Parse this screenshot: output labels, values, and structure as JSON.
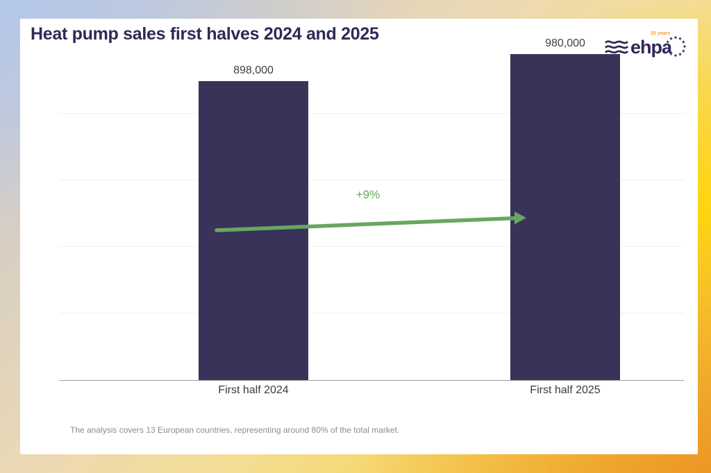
{
  "header": {
    "title": "Heat pump sales first halves 2024 and 2025"
  },
  "logo": {
    "text": "ehpa",
    "years_text": "25 years"
  },
  "chart_data": {
    "type": "bar",
    "title": "Heat pump sales first halves 2024 and 2025",
    "categories": [
      "First half 2024",
      "First half 2025"
    ],
    "values": [
      898000,
      980000
    ],
    "value_labels": [
      "898,000",
      "980,000"
    ],
    "xlabel": "",
    "ylabel": "",
    "ylim": [
      0,
      1000000
    ],
    "gridline_values": [
      200000,
      400000,
      600000,
      800000
    ],
    "grid": "horizontal gridlines, no y-axis tick labels",
    "legend": "none",
    "bar_color": "#39335a",
    "annotation": {
      "label": "+9%",
      "type": "growth-arrow",
      "color": "#6aa661",
      "from_category": "First half 2024",
      "to_category": "First half 2025"
    }
  },
  "footnote": "The analysis covers 13 European countries, representing around 80% of the total market.",
  "theme": {
    "navy": "#2e2a57",
    "bar": "#39335a",
    "green": "#6aa661",
    "orange": "#f2a33c",
    "text_dark": "#404040",
    "gray": "#8c8c8c",
    "gridline": "#f0f0f0",
    "axis": "#9e9e9e",
    "card_bg": "#ffffff"
  }
}
